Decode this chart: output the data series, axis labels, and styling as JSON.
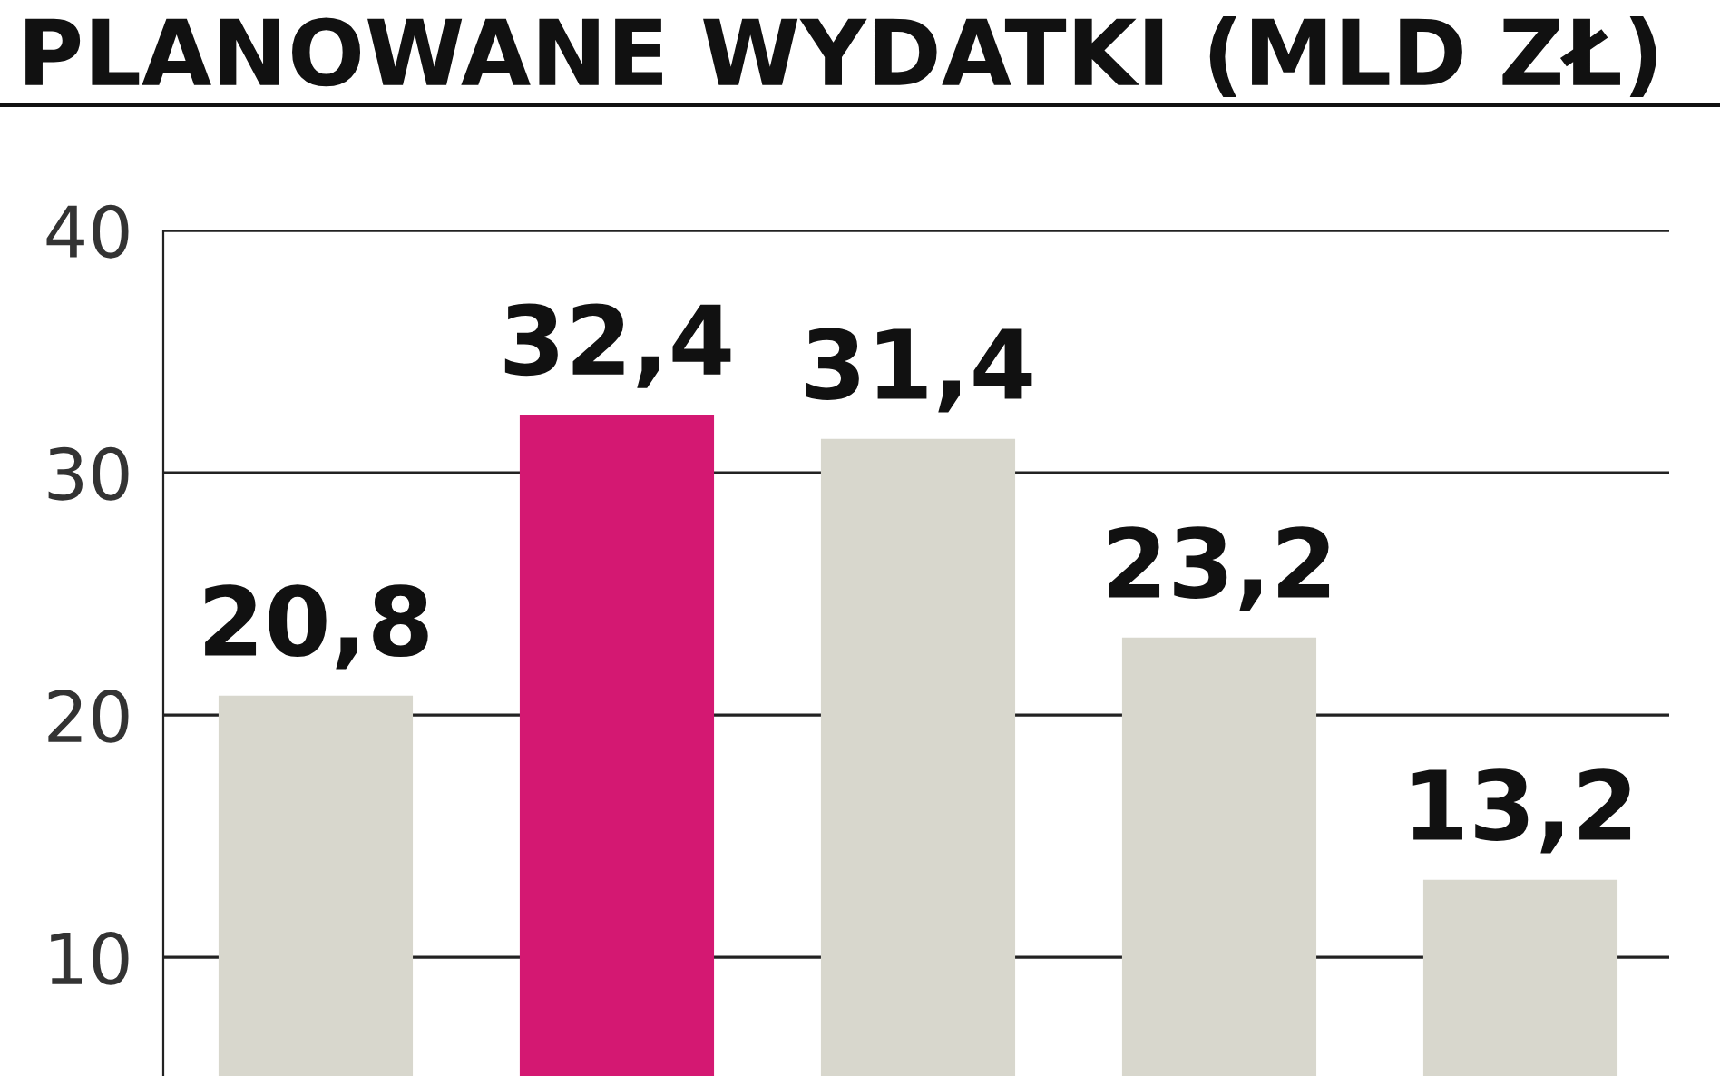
{
  "chart_data": {
    "type": "bar",
    "title": "PLANOWANE WYDATKI (MLD ZŁ)",
    "categories": [
      null,
      null,
      null,
      null,
      null
    ],
    "values": [
      20.8,
      32.4,
      31.4,
      23.2,
      13.2
    ],
    "colors": [
      "#d8d7cd",
      "#d41872",
      "#d8d7cd",
      "#d8d7cd",
      "#d8d7cd"
    ],
    "value_labels": [
      "20,8",
      "32,4",
      "31,4",
      "23,2",
      "13,2"
    ],
    "ylim": [
      5.1,
      40
    ],
    "yticks": [
      10,
      20,
      30,
      40
    ],
    "grid": "y",
    "tick_labels": "y"
  }
}
